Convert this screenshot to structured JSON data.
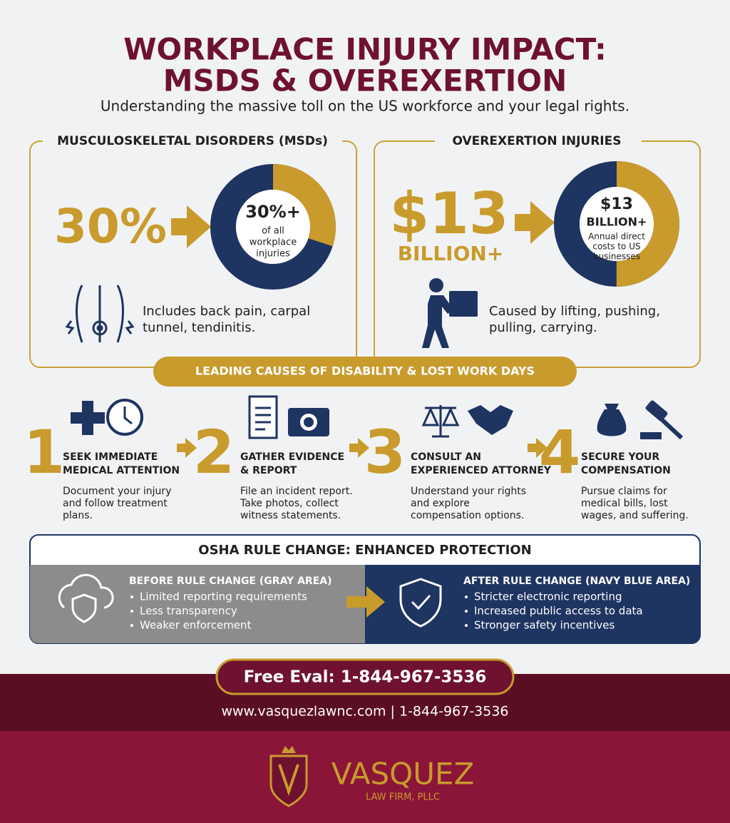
{
  "header": {
    "title_lines": [
      "WORKPLACE INJURY IMPACT:",
      "MSDS & OVEREXERTION"
    ],
    "subtitle": "Understanding the massive toll on the US workforce and your legal rights."
  },
  "panels": [
    {
      "heading": "MUSCULOSKELETAL DISORDERS (MSDs)",
      "big_lines": [
        "30%"
      ],
      "donut_lines": [
        "30%+",
        "of all",
        "workplace",
        "injuries"
      ],
      "caption_lines": [
        "Includes back pain, carpal",
        "tunnel, tendinitis."
      ]
    },
    {
      "heading": "OVEREXERTION INJURIES",
      "big_lines": [
        "$13",
        "BILLION+"
      ],
      "donut_lines": [
        "$13",
        "BILLION+",
        "Annual direct",
        "costs to US",
        "businesses"
      ],
      "caption_lines": [
        "Caused by lifting, pushing,",
        "pulling, carrying."
      ]
    }
  ],
  "banner": "LEADING CAUSES OF DISABILITY & LOST WORK DAYS",
  "steps": [
    {
      "number": "1",
      "title_lines": [
        "SEEK IMMEDIATE",
        "MEDICAL ATTENTION"
      ],
      "description_lines": [
        "Document your injury",
        "and follow treatment",
        "plans."
      ]
    },
    {
      "number": "2",
      "title_lines": [
        "GATHER EVIDENCE",
        "& REPORT"
      ],
      "description_lines": [
        "File an incident report.",
        "Take photos, collect",
        "witness statements."
      ]
    },
    {
      "number": "3",
      "title_lines": [
        "CONSULT AN",
        "EXPERIENCED ATTORNEY"
      ],
      "description_lines": [
        "Understand your rights",
        "and explore",
        "compensation options."
      ]
    },
    {
      "number": "4",
      "title_lines": [
        "SECURE YOUR",
        "COMPENSATION"
      ],
      "description_lines": [
        "Pursue claims for",
        "medical bills, lost",
        "wages, and suffering."
      ]
    }
  ],
  "osha": {
    "heading": "OSHA RULE CHANGE: ENHANCED PROTECTION",
    "before": {
      "heading": "BEFORE RULE CHANGE (GRAY AREA)",
      "items": [
        "Limited reporting requirements",
        "Less transparency",
        "Weaker enforcement"
      ]
    },
    "after": {
      "heading": "AFTER RULE CHANGE (NAVY BLUE AREA)",
      "items": [
        "Stricter electronic reporting",
        "Increased public access to data",
        "Stronger safety incentives"
      ]
    }
  },
  "footer": {
    "cta": "Free Eval: 1-844-967-3536",
    "contact": "www.vasquezlawnc.com | 1-844-967-3536"
  },
  "logo": {
    "name": "VASQUEZ",
    "subtitle": "LAW FIRM, PLLC"
  }
}
